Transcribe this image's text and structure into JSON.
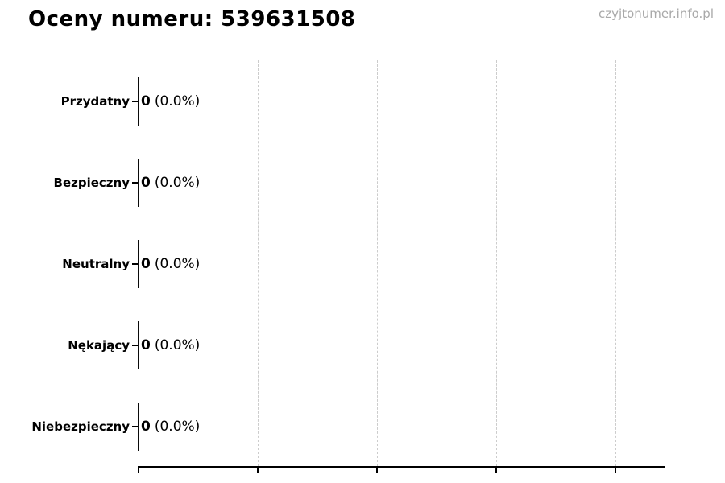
{
  "page": {
    "watermark": "czyjtonumer.info.pl",
    "background": "#ffffff"
  },
  "chart_data": {
    "type": "bar",
    "orientation": "horizontal",
    "title": "Oceny numeru: 539631508",
    "categories": [
      "Przydatny",
      "Bezpieczny",
      "Neutralny",
      "Nękający",
      "Niebezpieczny"
    ],
    "values": [
      0,
      0,
      0,
      0,
      0
    ],
    "percent_labels": [
      "(0.0%)",
      "(0.0%)",
      "(0.0%)",
      "(0.0%)",
      "(0.0%)"
    ],
    "value_label_format": "value (percent)",
    "x_tick_labels": [],
    "grid": true,
    "gridline_count": 5,
    "legend": false,
    "colors": {
      "bar_edge": "#0a0a0a",
      "axis": "#000000",
      "text": "#000000",
      "gridline": "#cccccc",
      "watermark": "#a9a9a9"
    }
  }
}
